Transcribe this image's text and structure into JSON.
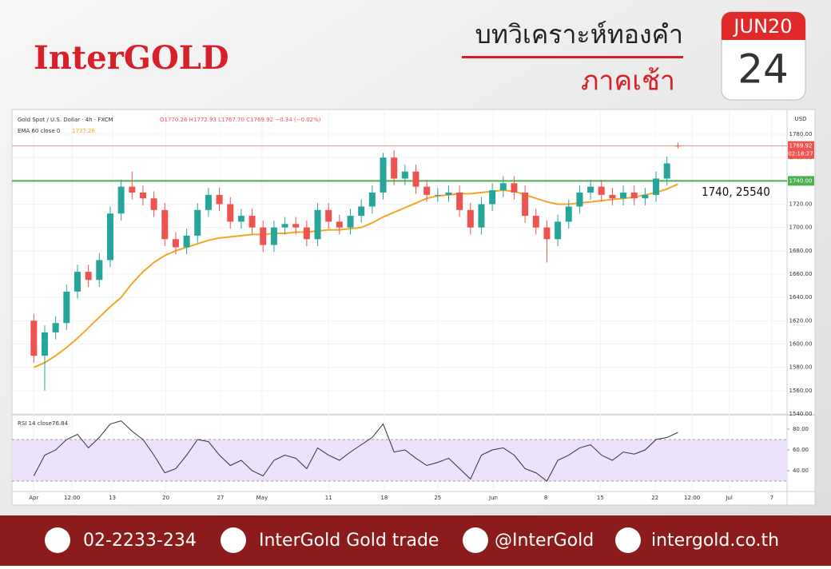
{
  "header": {
    "brand": "InterGOLD",
    "title": "บทวิเคราะห์ทองคำ",
    "subtitle": "ภาคเช้า",
    "calendar_month": "JUN20",
    "calendar_day": "24"
  },
  "chart_data": {
    "type": "candlestick",
    "title": "Gold Spot / U.S. Dollar · 4h · FXCM",
    "ohlc_text": "O1770.26 H1772.93 L1767.70 C1769.92 −0.34 (−0.02%)",
    "currency": "USD",
    "up_color": "#26a69a",
    "down_color": "#ef5350",
    "open": [
      1620,
      1590,
      1610,
      1618,
      1645,
      1662,
      1655,
      1672,
      1712,
      1735,
      1730,
      1725,
      1715,
      1690,
      1683,
      1693,
      1715,
      1728,
      1720,
      1705,
      1710,
      1700,
      1685,
      1700,
      1703,
      1700,
      1690,
      1715,
      1705,
      1700,
      1710,
      1718,
      1730,
      1760,
      1742,
      1748,
      1735,
      1728,
      1728,
      1730,
      1715,
      1700,
      1720,
      1732,
      1738,
      1730,
      1710,
      1700,
      1690,
      1705,
      1718,
      1730,
      1735,
      1728,
      1725,
      1730,
      1725,
      1728,
      1742,
      1770.26
    ],
    "high": [
      1626,
      1616,
      1624,
      1651,
      1668,
      1668,
      1678,
      1718,
      1741,
      1748,
      1736,
      1731,
      1721,
      1696,
      1699,
      1721,
      1734,
      1734,
      1726,
      1716,
      1716,
      1706,
      1706,
      1709,
      1709,
      1706,
      1721,
      1721,
      1711,
      1716,
      1724,
      1736,
      1764,
      1766,
      1754,
      1754,
      1741,
      1734,
      1736,
      1736,
      1721,
      1726,
      1738,
      1744,
      1744,
      1736,
      1716,
      1706,
      1711,
      1724,
      1736,
      1741,
      1741,
      1734,
      1736,
      1736,
      1734,
      1748,
      1761,
      1772.93
    ],
    "low": [
      1584,
      1560,
      1604,
      1612,
      1639,
      1649,
      1649,
      1666,
      1706,
      1724,
      1719,
      1709,
      1684,
      1677,
      1677,
      1687,
      1709,
      1714,
      1699,
      1699,
      1694,
      1679,
      1679,
      1694,
      1694,
      1684,
      1684,
      1699,
      1694,
      1694,
      1704,
      1712,
      1724,
      1736,
      1736,
      1729,
      1722,
      1722,
      1722,
      1709,
      1694,
      1694,
      1714,
      1726,
      1724,
      1704,
      1694,
      1670,
      1684,
      1699,
      1712,
      1724,
      1722,
      1719,
      1719,
      1719,
      1719,
      1722,
      1736,
      1767.7
    ],
    "close": [
      1590,
      1610,
      1618,
      1645,
      1662,
      1655,
      1672,
      1712,
      1735,
      1730,
      1725,
      1715,
      1690,
      1683,
      1693,
      1715,
      1728,
      1720,
      1705,
      1710,
      1700,
      1685,
      1700,
      1703,
      1700,
      1690,
      1715,
      1705,
      1700,
      1710,
      1718,
      1730,
      1760,
      1742,
      1748,
      1735,
      1728,
      1728,
      1730,
      1715,
      1700,
      1720,
      1732,
      1738,
      1730,
      1710,
      1700,
      1690,
      1705,
      1718,
      1730,
      1735,
      1728,
      1725,
      1730,
      1725,
      1728,
      1742,
      1755,
      1769.92
    ],
    "ema": {
      "name": "EMA 60 close 0",
      "value_label": "1737.26",
      "color": "#f5a623",
      "values": [
        1580,
        1584,
        1590,
        1597,
        1605,
        1614,
        1623,
        1632,
        1640,
        1652,
        1662,
        1670,
        1676,
        1680,
        1683,
        1686,
        1689,
        1691,
        1692,
        1693,
        1694,
        1694,
        1695,
        1695,
        1696,
        1696,
        1697,
        1698,
        1698,
        1699,
        1700,
        1704,
        1709,
        1713,
        1717,
        1721,
        1725,
        1727,
        1728,
        1729,
        1729,
        1730,
        1731,
        1732,
        1731,
        1728,
        1725,
        1722,
        1720,
        1720,
        1721,
        1722,
        1723,
        1724,
        1725,
        1726,
        1728,
        1730,
        1733,
        1737.26
      ]
    },
    "last_price": {
      "value": 1769.92,
      "label": "1769.92",
      "timer": "02:18:27",
      "color": "#ef5350"
    },
    "level": {
      "value": 1740,
      "label": "1740.00",
      "annotation": "1740, 25540",
      "color": "#4caf50"
    },
    "xlim": [
      -2,
      69
    ],
    "ylim": [
      1540,
      1799.2
    ],
    "yticks": [
      {
        "value": 1540,
        "label": "1540.00"
      },
      {
        "value": 1560,
        "label": "1560.00"
      },
      {
        "value": 1580,
        "label": "1580.00"
      },
      {
        "value": 1600,
        "label": "1600.00"
      },
      {
        "value": 1620,
        "label": "1620.00"
      },
      {
        "value": 1640,
        "label": "1640.00"
      },
      {
        "value": 1660,
        "label": "1660.00"
      },
      {
        "value": 1680,
        "label": "1680.00"
      },
      {
        "value": 1700,
        "label": "1700.00"
      },
      {
        "value": 1720,
        "label": "1720.00"
      },
      {
        "value": 1740,
        "label": "1740.00"
      },
      {
        "value": 1760,
        "label": "1760.00"
      },
      {
        "value": 1780,
        "label": "1780.00"
      }
    ],
    "xticks": [
      {
        "value": 0,
        "label": "Apr"
      },
      {
        "value": 3.5,
        "label": "12:00"
      },
      {
        "value": 7.2,
        "label": "13"
      },
      {
        "value": 12.1,
        "label": "20"
      },
      {
        "value": 17.1,
        "label": "27"
      },
      {
        "value": 20.9,
        "label": "May"
      },
      {
        "value": 27,
        "label": "11"
      },
      {
        "value": 32.1,
        "label": "18"
      },
      {
        "value": 37,
        "label": "25"
      },
      {
        "value": 42.1,
        "label": "Jun"
      },
      {
        "value": 46.9,
        "label": "8"
      },
      {
        "value": 51.9,
        "label": "15"
      },
      {
        "value": 56.9,
        "label": "22"
      },
      {
        "value": 60.3,
        "label": "12:00"
      },
      {
        "value": 63.7,
        "label": "Jul"
      },
      {
        "value": 67.6,
        "label": "7"
      }
    ],
    "rsi": {
      "name": "RSI 14 close",
      "value_label": "76.84",
      "color": "#333333",
      "band": [
        30,
        70
      ],
      "ylim": [
        20,
        93.1
      ],
      "yticks": [
        {
          "value": 40,
          "label": "40.00"
        },
        {
          "value": 60,
          "label": "60.00"
        },
        {
          "value": 80,
          "label": "80.00"
        }
      ],
      "values": [
        35,
        55,
        60,
        70,
        75,
        62,
        72,
        85,
        88,
        78,
        70,
        55,
        38,
        42,
        55,
        70,
        68,
        55,
        45,
        50,
        40,
        35,
        50,
        55,
        52,
        42,
        62,
        55,
        50,
        58,
        65,
        72,
        85,
        58,
        60,
        52,
        45,
        48,
        52,
        42,
        32,
        55,
        60,
        62,
        55,
        42,
        38,
        30,
        50,
        55,
        62,
        65,
        55,
        50,
        58,
        56,
        60,
        70,
        72,
        76.84
      ]
    }
  },
  "footer": {
    "phone": "02-2233-234",
    "facebook": "InterGold Gold trade",
    "line": "@InterGold",
    "website": "intergold.co.th"
  }
}
